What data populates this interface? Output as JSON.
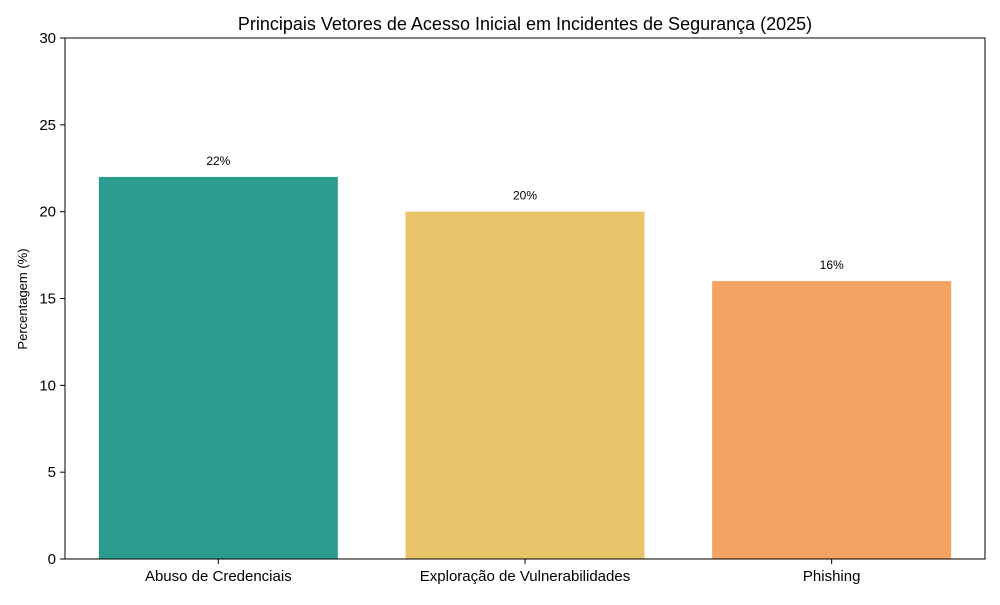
{
  "chart_data": {
    "type": "bar",
    "title": "Principais Vetores de Acesso Inicial em Incidentes de Segurança (2025)",
    "xlabel": "",
    "ylabel": "Percentagem (%)",
    "ylim": [
      0,
      30
    ],
    "yticks": [
      0,
      5,
      10,
      15,
      20,
      25,
      30
    ],
    "categories": [
      "Abuso de Credenciais",
      "Exploração de Vulnerabilidades",
      "Phishing"
    ],
    "values": [
      22,
      20,
      16
    ],
    "data_labels": [
      "22%",
      "20%",
      "16%"
    ],
    "colors": [
      "#2a9d8f",
      "#e9c46a",
      "#f4a261"
    ],
    "grid": false,
    "legend": false
  }
}
